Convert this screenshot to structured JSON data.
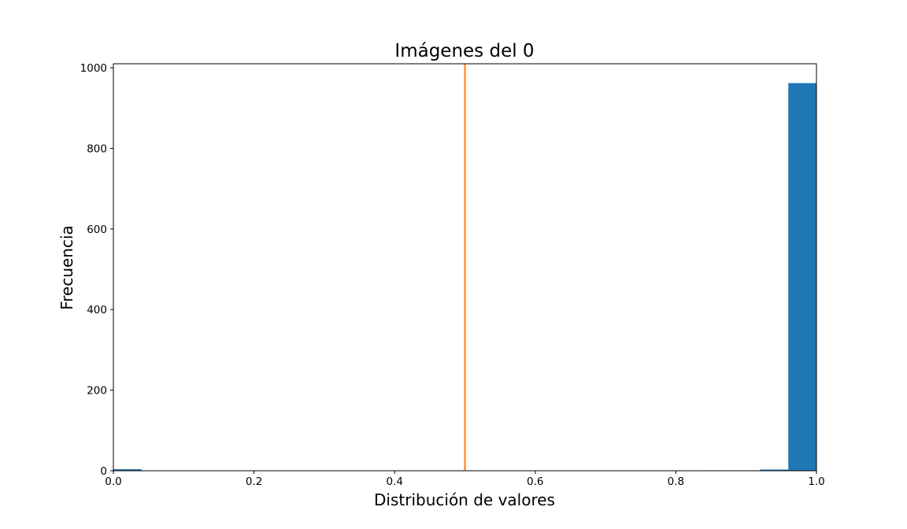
{
  "chart_data": {
    "type": "bar",
    "title": "Imágenes del 0",
    "xlabel": "Distribución de valores",
    "ylabel": "Frecuencia",
    "xlim": [
      0,
      1
    ],
    "ylim": [
      0,
      1010
    ],
    "xticks": [
      "0.0",
      "0.2",
      "0.4",
      "0.6",
      "0.8",
      "1.0"
    ],
    "yticks": [
      "0",
      "200",
      "400",
      "600",
      "800",
      "1000"
    ],
    "grid": false,
    "bar_color": "#1f77b4",
    "bins": [
      {
        "x0": 0.0,
        "x1": 0.04,
        "count": 4
      },
      {
        "x0": 0.84,
        "x1": 0.88,
        "count": 1
      },
      {
        "x0": 0.88,
        "x1": 0.92,
        "count": 1
      },
      {
        "x0": 0.92,
        "x1": 0.96,
        "count": 3
      },
      {
        "x0": 0.96,
        "x1": 1.0,
        "count": 962
      }
    ],
    "vline": {
      "x": 0.5,
      "color": "#ff7f0e"
    }
  }
}
